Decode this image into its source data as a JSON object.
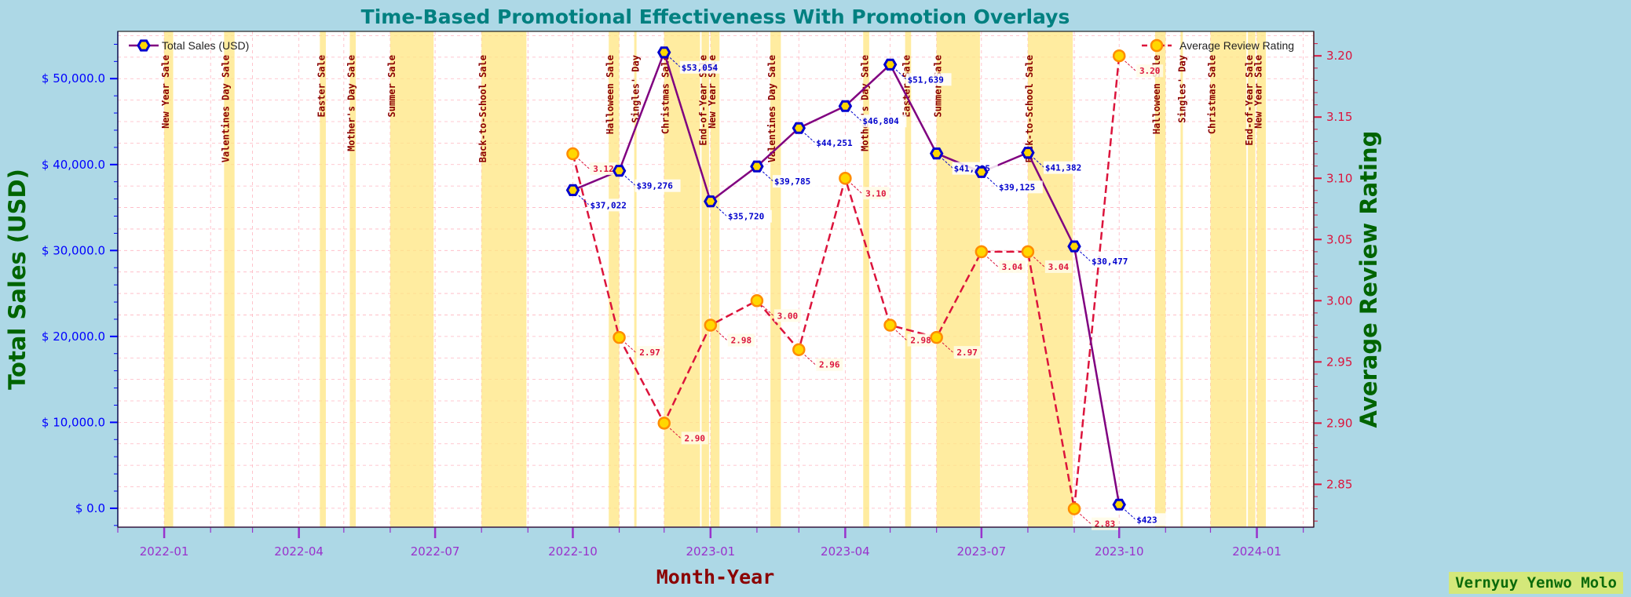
{
  "chart_data": {
    "type": "line",
    "title": "Time-Based Promotional Effectiveness With Promotion Overlays",
    "xlabel": "Month-Year",
    "ylabel_left": "Total Sales (USD)",
    "ylabel_right": "Average Review Rating",
    "x_tick_labels": [
      "2022-01",
      "2022-04",
      "2022-07",
      "2022-10",
      "2023-01",
      "2023-04",
      "2023-07",
      "2023-10",
      "2024-01"
    ],
    "y_left_ticks": [
      "$ 0.0",
      "$ 10,000.0",
      "$ 20,000.0",
      "$ 30,000.0",
      "$ 40,000.0",
      "$ 50,000.0"
    ],
    "y_right_ticks": [
      "2.85",
      "2.90",
      "2.95",
      "3.00",
      "3.05",
      "3.10",
      "3.15",
      "3.20"
    ],
    "ylim_left": [
      -2200,
      55500
    ],
    "ylim_right": [
      2.815,
      3.22
    ],
    "grid": true,
    "legend": {
      "left_position": "upper-left",
      "right_position": "upper-right"
    },
    "x": [
      "2022-10-01",
      "2022-11-01",
      "2022-12-01",
      "2023-01-01",
      "2023-02-01",
      "2023-03-01",
      "2023-04-01",
      "2023-05-01",
      "2023-06-01",
      "2023-07-01",
      "2023-08-01",
      "2023-09-01",
      "2023-10-01"
    ],
    "series": [
      {
        "name": "Total Sales (USD)",
        "axis": "left",
        "color": "#800080",
        "marker_face": "#ffd700",
        "marker_edge": "#0000cd",
        "line_style": "solid",
        "values": [
          37022,
          39276,
          53054,
          35720,
          39785,
          44251,
          46804,
          51639,
          41295,
          39125,
          41382,
          30477,
          423
        ],
        "labels": [
          "$37,022",
          "$39,276",
          "$53,054",
          "$35,720",
          "$39,785",
          "$44,251",
          "$46,804",
          "$51,639",
          "$41,295",
          "$39,125",
          "$41,382",
          "$30,477",
          "$423"
        ]
      },
      {
        "name": "Average Review Rating",
        "axis": "right",
        "color": "#dc143c",
        "marker_face": "#ffd700",
        "marker_edge": "#ff8c00",
        "line_style": "dashed",
        "values": [
          3.12,
          2.97,
          2.9,
          2.98,
          3.0,
          2.96,
          3.1,
          2.98,
          2.97,
          3.04,
          3.04,
          2.83,
          3.2
        ],
        "labels": [
          "3.12",
          "2.97",
          "2.90",
          "2.98",
          "3.00",
          "2.96",
          "3.10",
          "2.98",
          "2.97",
          "3.04",
          "3.04",
          "2.83",
          "3.20"
        ]
      }
    ],
    "promotions": [
      {
        "name": "New Year Sale",
        "start": "2022-01-01",
        "end": "2022-01-07"
      },
      {
        "name": "Valentines Day Sale",
        "start": "2022-02-10",
        "end": "2022-02-17"
      },
      {
        "name": "Mother's Day Sale",
        "start": "2022-05-05",
        "end": "2022-05-09"
      },
      {
        "name": "Easter Sale",
        "start": "2022-04-15",
        "end": "2022-04-19"
      },
      {
        "name": "Summer Sale",
        "start": "2022-06-01",
        "end": "2022-06-30"
      },
      {
        "name": "Back-to-School Sale",
        "start": "2022-08-01",
        "end": "2022-08-31"
      },
      {
        "name": "Halloween Sale",
        "start": "2022-10-25",
        "end": "2022-11-01"
      },
      {
        "name": "Singles' Day",
        "start": "2022-11-11",
        "end": "2022-11-12"
      },
      {
        "name": "Christmas Sale",
        "start": "2022-12-01",
        "end": "2022-12-25"
      },
      {
        "name": "End-of-Year Sale",
        "start": "2022-12-26",
        "end": "2022-12-31"
      },
      {
        "name": "New Year Sale",
        "start": "2023-01-01",
        "end": "2023-01-07"
      },
      {
        "name": "Valentines Day Sale",
        "start": "2023-02-10",
        "end": "2023-02-17"
      },
      {
        "name": "Mother's Day Sale",
        "start": "2023-04-13",
        "end": "2023-04-17"
      },
      {
        "name": "Easter Sale",
        "start": "2023-05-11",
        "end": "2023-05-15"
      },
      {
        "name": "Summer Sale",
        "start": "2023-06-01",
        "end": "2023-06-30"
      },
      {
        "name": "Back-to-School Sale",
        "start": "2023-08-01",
        "end": "2023-08-31"
      },
      {
        "name": "Halloween Sale",
        "start": "2023-10-25",
        "end": "2023-11-01"
      },
      {
        "name": "Singles' Day",
        "start": "2023-11-11",
        "end": "2023-11-12"
      },
      {
        "name": "Christmas Sale",
        "start": "2023-12-01",
        "end": "2023-12-25"
      },
      {
        "name": "End-of-Year Sale",
        "start": "2023-12-26",
        "end": "2023-12-31"
      },
      {
        "name": "New Year Sale",
        "start": "2024-01-01",
        "end": "2024-01-07"
      }
    ]
  },
  "watermark": "Vernyuy Yenwo Molo",
  "colors": {
    "background": "#add8e6",
    "plot_background": "#ffffff",
    "title": "#008080",
    "axis_label": "#006400",
    "xlabel": "#8b0000",
    "tick_left": "#0000ff",
    "tick_right": "#dc143c",
    "tick_x": "#9932cc",
    "promo_fill": "#ffe680",
    "promo_text": "#8b0000",
    "grid": "#ffb6c1"
  }
}
